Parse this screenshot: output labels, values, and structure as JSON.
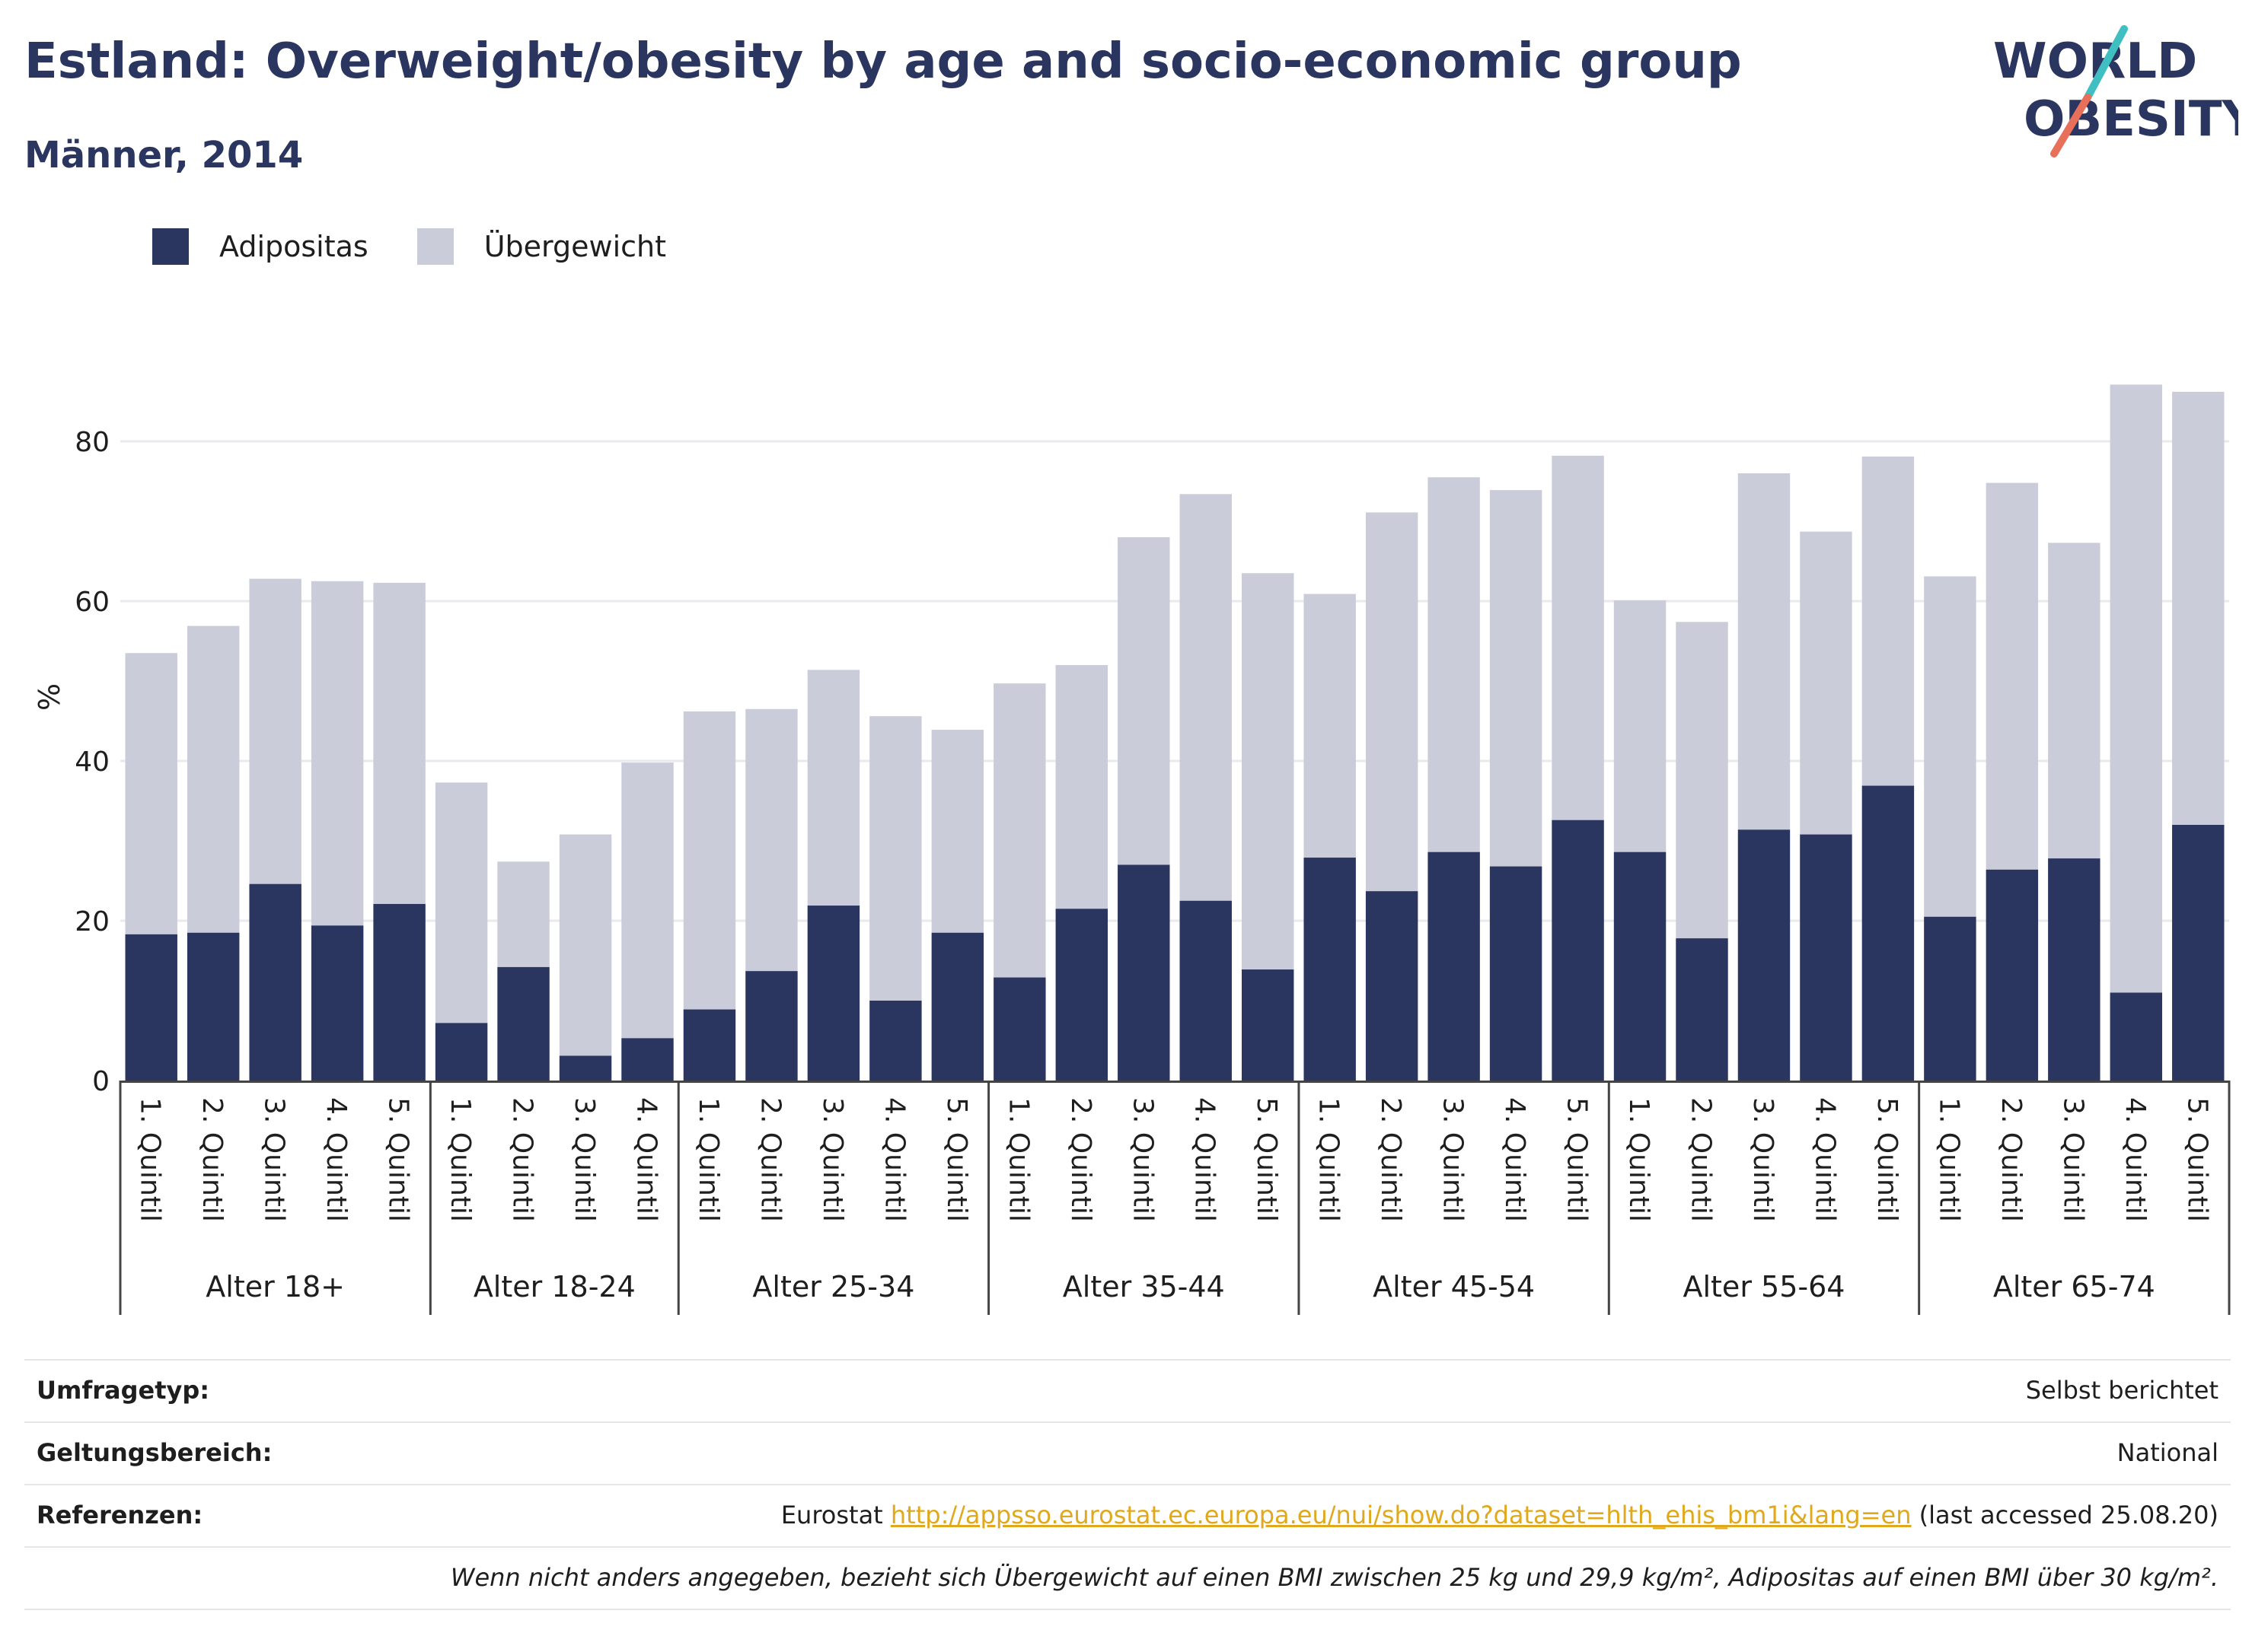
{
  "header": {
    "title": "Estland: Overweight/obesity by age and socio-economic group",
    "subtitle": "Männer, 2014",
    "logo_line1": "WORLD",
    "logo_line2": "OBESITY"
  },
  "colors": {
    "obesity": "#2a3560",
    "overweight": "#cbccd9",
    "title": "#2a3560",
    "link": "#e0a81c",
    "logo_teal": "#3fbfc1",
    "logo_coral": "#e8705a"
  },
  "legend": [
    {
      "label": "Adipositas",
      "color": "#2a3560"
    },
    {
      "label": "Übergewicht",
      "color": "#cbccd9"
    }
  ],
  "chart_data": {
    "type": "bar",
    "stacked": true,
    "ylabel": "%",
    "ylim": [
      0,
      88
    ],
    "yticks": [
      0,
      20,
      40,
      60,
      80
    ],
    "grid": true,
    "legend_position": "top-left",
    "groups": [
      {
        "label": "Alter 18+",
        "categories": [
          "1. Quintil",
          "2. Quintil",
          "3. Quintil",
          "4. Quintil",
          "5. Quintil"
        ],
        "obesity": [
          18.3,
          18.5,
          24.6,
          19.4,
          22.1
        ],
        "total": [
          53.5,
          56.9,
          62.8,
          62.5,
          62.3
        ]
      },
      {
        "label": "Alter 18-24",
        "categories": [
          "1. Quintil",
          "2. Quintil",
          "3. Quintil",
          "4. Quintil"
        ],
        "obesity": [
          7.2,
          14.2,
          3.1,
          5.3
        ],
        "total": [
          37.3,
          27.4,
          30.8,
          39.8
        ]
      },
      {
        "label": "Alter 25-34",
        "categories": [
          "1. Quintil",
          "2. Quintil",
          "3. Quintil",
          "4. Quintil",
          "5. Quintil"
        ],
        "obesity": [
          8.9,
          13.7,
          21.9,
          10.0,
          18.5
        ],
        "total": [
          46.2,
          46.5,
          51.4,
          45.6,
          43.9
        ]
      },
      {
        "label": "Alter 35-44",
        "categories": [
          "1. Quintil",
          "2. Quintil",
          "3. Quintil",
          "4. Quintil",
          "5. Quintil"
        ],
        "obesity": [
          12.9,
          21.5,
          27.0,
          22.5,
          13.9
        ],
        "total": [
          49.7,
          52.0,
          68.0,
          73.4,
          63.5
        ]
      },
      {
        "label": "Alter 45-54",
        "categories": [
          "1. Quintil",
          "2. Quintil",
          "3. Quintil",
          "4. Quintil",
          "5. Quintil"
        ],
        "obesity": [
          27.9,
          23.7,
          28.6,
          26.8,
          32.6
        ],
        "total": [
          60.9,
          71.1,
          75.5,
          73.9,
          78.2
        ]
      },
      {
        "label": "Alter 55-64",
        "categories": [
          "1. Quintil",
          "2. Quintil",
          "3. Quintil",
          "4. Quintil",
          "5. Quintil"
        ],
        "obesity": [
          28.6,
          17.8,
          31.4,
          30.8,
          36.9
        ],
        "total": [
          60.1,
          57.4,
          76.0,
          68.7,
          78.1
        ]
      },
      {
        "label": "Alter 65-74",
        "categories": [
          "1. Quintil",
          "2. Quintil",
          "3. Quintil",
          "4. Quintil",
          "5. Quintil"
        ],
        "obesity": [
          20.5,
          26.4,
          27.8,
          11.0,
          32.0
        ],
        "total": [
          63.1,
          74.8,
          67.3,
          87.1,
          86.2
        ]
      }
    ]
  },
  "info": {
    "survey_label": "Umfragetyp:",
    "survey_value": "Selbst berichtet",
    "scope_label": "Geltungsbereich:",
    "scope_value": "National",
    "ref_label": "Referenzen:",
    "ref_prefix": "Eurostat ",
    "ref_link": "http://appsso.eurostat.ec.europa.eu/nui/show.do?dataset=hlth_ehis_bm1i&lang=en",
    "ref_suffix": " (last accessed 25.08.20)",
    "note": "Wenn nicht anders angegeben, bezieht sich Übergewicht auf einen BMI zwischen 25 kg und 29,9 kg/m², Adipositas auf einen BMI über 30 kg/m²."
  }
}
